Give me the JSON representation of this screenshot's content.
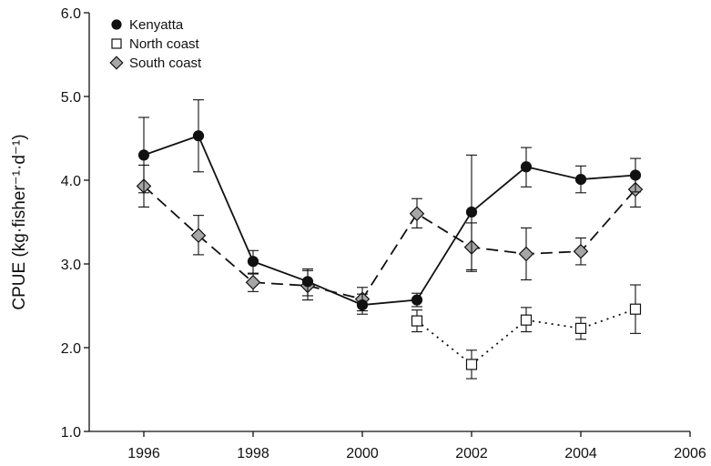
{
  "chart_data": {
    "type": "line",
    "title": "",
    "xlabel": "",
    "ylabel": "CPUE (kg·fisher⁻¹·d⁻¹)",
    "xlim": [
      1995,
      2006
    ],
    "ylim": [
      1.0,
      6.0
    ],
    "x_ticks": [
      "1996",
      "1998",
      "2000",
      "2002",
      "2004",
      "2006"
    ],
    "y_ticks": [
      "1.0",
      "2.0",
      "3.0",
      "4.0",
      "5.0",
      "6.0"
    ],
    "grid": false,
    "legend_position": "top-left",
    "series": [
      {
        "name": "Kenyatta",
        "line_style": "solid",
        "marker": "circle",
        "marker_fill": "#111111",
        "points": [
          {
            "x": 1996,
            "y": 4.3,
            "err_low": 3.85,
            "err_high": 4.75
          },
          {
            "x": 1997,
            "y": 4.53,
            "err_low": 4.1,
            "err_high": 4.96
          },
          {
            "x": 1998,
            "y": 3.03,
            "err_low": 2.88,
            "err_high": 3.16
          },
          {
            "x": 1999,
            "y": 2.79,
            "err_low": 2.62,
            "err_high": 2.94
          },
          {
            "x": 2000,
            "y": 2.51,
            "err_low": 2.4,
            "err_high": 2.64
          },
          {
            "x": 2001,
            "y": 2.57,
            "err_low": 2.49,
            "err_high": 2.65
          },
          {
            "x": 2002,
            "y": 3.62,
            "err_low": 2.93,
            "err_high": 4.3
          },
          {
            "x": 2003,
            "y": 4.16,
            "err_low": 3.92,
            "err_high": 4.39
          },
          {
            "x": 2004,
            "y": 4.01,
            "err_low": 3.85,
            "err_high": 4.17
          },
          {
            "x": 2005,
            "y": 4.06,
            "err_low": 3.86,
            "err_high": 4.26
          }
        ]
      },
      {
        "name": "North coast",
        "line_style": "dotted",
        "marker": "square",
        "marker_fill": "#ffffff",
        "points": [
          {
            "x": 2001,
            "y": 2.32,
            "err_low": 2.19,
            "err_high": 2.45
          },
          {
            "x": 2002,
            "y": 1.8,
            "err_low": 1.63,
            "err_high": 1.97
          },
          {
            "x": 2003,
            "y": 2.33,
            "err_low": 2.19,
            "err_high": 2.48
          },
          {
            "x": 2004,
            "y": 2.23,
            "err_low": 2.1,
            "err_high": 2.36
          },
          {
            "x": 2005,
            "y": 2.46,
            "err_low": 2.17,
            "err_high": 2.75
          }
        ]
      },
      {
        "name": "South coast",
        "line_style": "dashed",
        "marker": "diamond",
        "marker_fill": "#a6a6a6",
        "points": [
          {
            "x": 1996,
            "y": 3.93,
            "err_low": 3.68,
            "err_high": 4.18
          },
          {
            "x": 1997,
            "y": 3.34,
            "err_low": 3.11,
            "err_high": 3.58
          },
          {
            "x": 1998,
            "y": 2.78,
            "err_low": 2.67,
            "err_high": 2.89
          },
          {
            "x": 1999,
            "y": 2.74,
            "err_low": 2.57,
            "err_high": 2.92
          },
          {
            "x": 2000,
            "y": 2.58,
            "err_low": 2.44,
            "err_high": 2.72
          },
          {
            "x": 2001,
            "y": 3.6,
            "err_low": 3.43,
            "err_high": 3.78
          },
          {
            "x": 2002,
            "y": 3.2,
            "err_low": 2.91,
            "err_high": 3.49
          },
          {
            "x": 2003,
            "y": 3.12,
            "err_low": 2.81,
            "err_high": 3.43
          },
          {
            "x": 2004,
            "y": 3.15,
            "err_low": 2.99,
            "err_high": 3.31
          },
          {
            "x": 2005,
            "y": 3.89,
            "err_low": 3.68,
            "err_high": 4.05
          }
        ]
      }
    ]
  }
}
